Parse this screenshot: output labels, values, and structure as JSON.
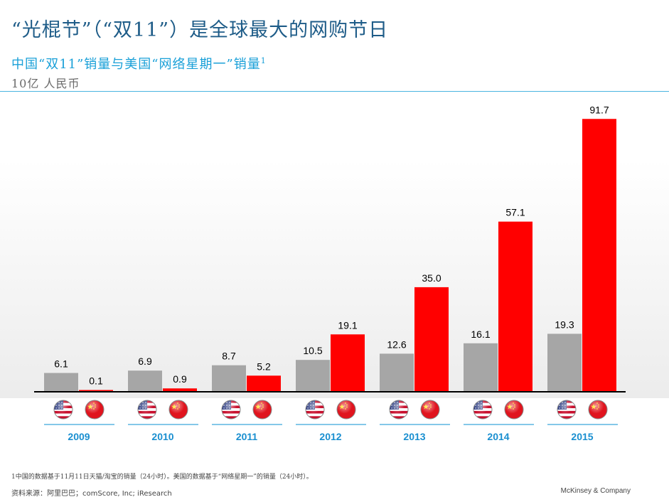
{
  "header": {
    "title": "“光棍节”（“双11”）是全球最大的网购节日",
    "subtitle": "中国“双11”销量与美国“网络星期一”销量",
    "subtitle_footnote_mark": "1",
    "unit": "10亿 人民币"
  },
  "chart_data": {
    "type": "bar",
    "categories": [
      "2009",
      "2010",
      "2011",
      "2012",
      "2013",
      "2014",
      "2015"
    ],
    "series": [
      {
        "flag": "us-flag-icon",
        "color": "#a6a6a6",
        "values": [
          6.1,
          6.9,
          8.7,
          10.5,
          12.6,
          16.1,
          19.3
        ]
      },
      {
        "flag": "china-flag-icon",
        "color": "#ff0000",
        "values": [
          0.1,
          0.9,
          5.2,
          19.1,
          35.0,
          57.1,
          91.7
        ]
      }
    ],
    "value_labels": [
      [
        "6.1",
        "6.9",
        "8.7",
        "10.5",
        "12.6",
        "16.1",
        "19.3"
      ],
      [
        "0.1",
        "0.9",
        "5.2",
        "19.1",
        "35.0",
        "57.1",
        "91.7"
      ]
    ],
    "ylim": [
      0,
      92
    ],
    "year_label_color": "#1a8fd0",
    "year_rule_color": "#3aa7dc"
  },
  "footer": {
    "footnote": "1中国的数据基于11月11日天猫/淘宝的销量（24小时）。美国的数据基于“网络星期一”的销量（24小时）。",
    "source": "资料来源：阿里巴巴；comScore, Inc; iResearch",
    "company": "McKinsey & Company"
  }
}
